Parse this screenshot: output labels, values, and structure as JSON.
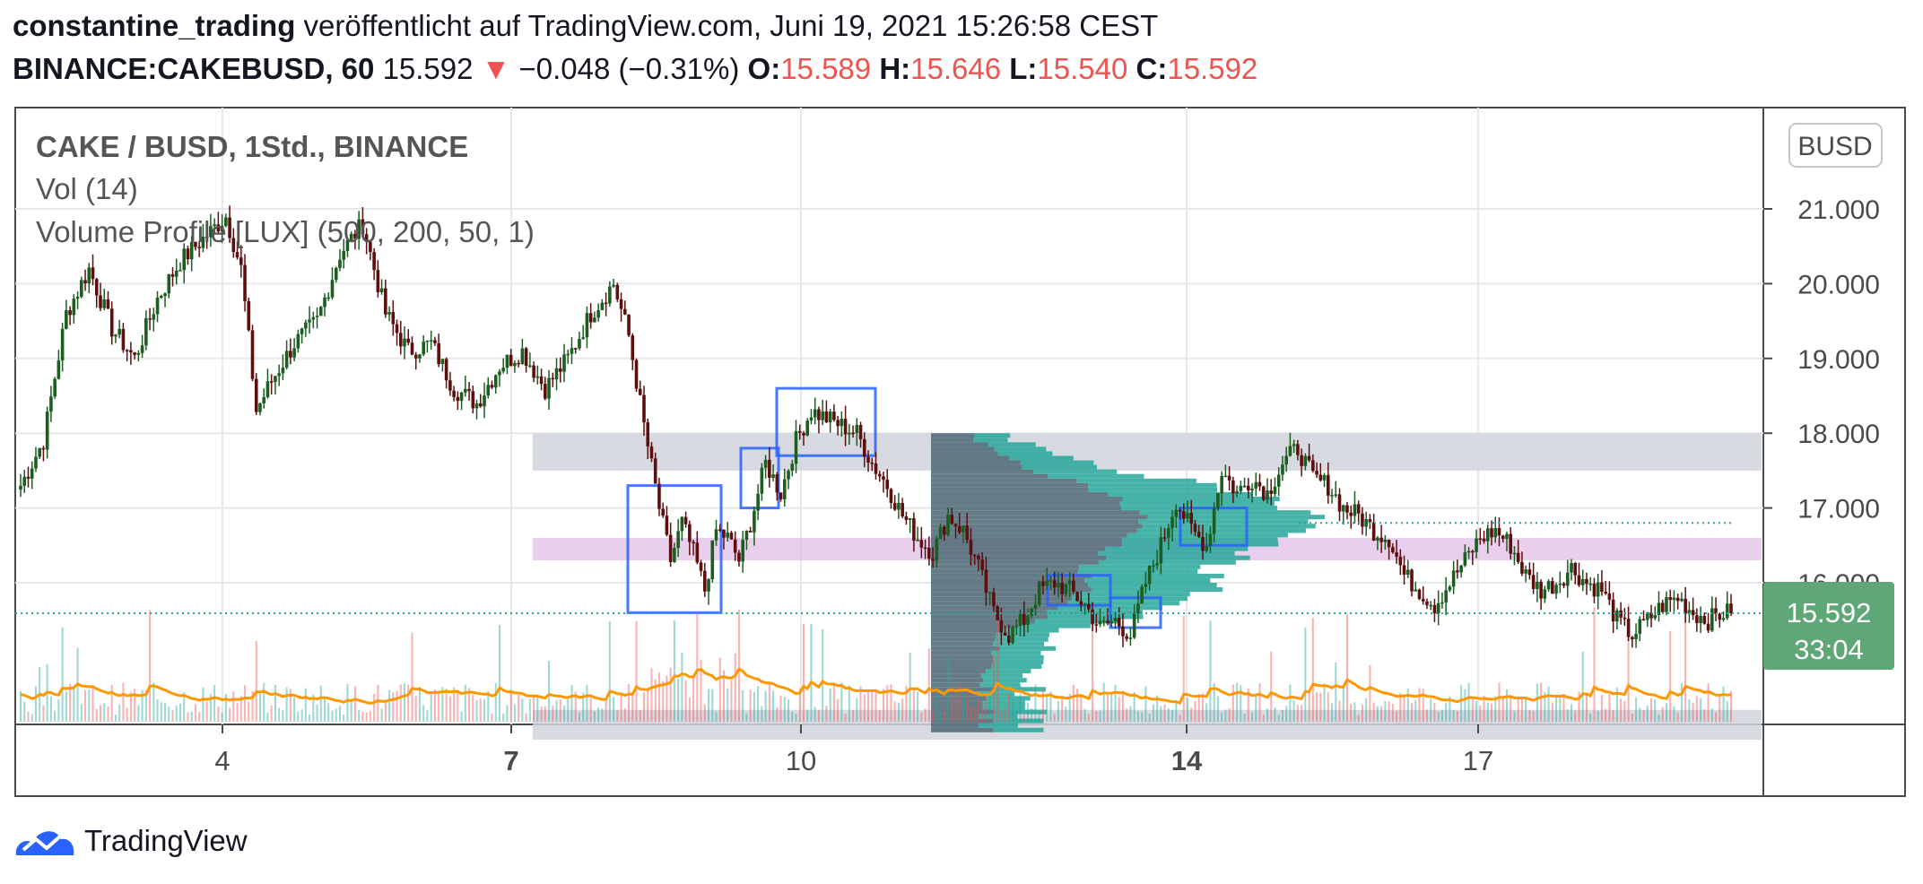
{
  "header": {
    "author": "constantine_trading",
    "published": "veröffentlicht auf TradingView.com, Juni 19, 2021 15:26:58 CEST",
    "symbol": "BINANCE:CAKEBUSD, 60",
    "last": "15.592",
    "change": "−0.048 (−0.31%)",
    "o_label": "O:",
    "o": "15.589",
    "h_label": "H:",
    "h": "15.646",
    "l_label": "L:",
    "l": "15.540",
    "c_label": "C:",
    "c": "15.592"
  },
  "legend": {
    "title": "CAKE / BUSD, 1Std., BINANCE",
    "vol": "Vol (14)",
    "vp": "Volume Profile [LUX] (500, 200, 50, 1)"
  },
  "price_badge": {
    "price": "15.592",
    "countdown": "33:04"
  },
  "currency_badge": "BUSD",
  "footer_brand": "TradingView",
  "colors": {
    "up": "#26a69a",
    "down": "#ef5350",
    "body_up": "#1b5e20",
    "body_down": "#5d0f0f",
    "zone_gray": "#d1d4dc",
    "zone_pink": "#e1bee7",
    "box": "#2962ff",
    "vol_ma": "#ff9800",
    "badge": "#5fa777"
  },
  "chart_data": {
    "type": "candlestick",
    "title": "CAKE / BUSD, 1Std., BINANCE",
    "x_ticks": [
      "4",
      "7",
      "10",
      "14",
      "17"
    ],
    "y_ticks": [
      "21.000",
      "20.000",
      "19.000",
      "18.000",
      "17.000",
      "16.000"
    ],
    "ylim": [
      14.3,
      21.6
    ],
    "close_path": [
      [
        0,
        17.3
      ],
      [
        6,
        17.9
      ],
      [
        12,
        19.6
      ],
      [
        18,
        20.2
      ],
      [
        24,
        19.4
      ],
      [
        30,
        19.0
      ],
      [
        36,
        19.8
      ],
      [
        42,
        20.3
      ],
      [
        48,
        20.6
      ],
      [
        54,
        20.9
      ],
      [
        58,
        20.2
      ],
      [
        62,
        18.3
      ],
      [
        66,
        18.7
      ],
      [
        72,
        19.2
      ],
      [
        78,
        19.5
      ],
      [
        84,
        20.4
      ],
      [
        90,
        20.8
      ],
      [
        96,
        19.6
      ],
      [
        102,
        19.1
      ],
      [
        108,
        19.2
      ],
      [
        114,
        18.6
      ],
      [
        120,
        18.4
      ],
      [
        126,
        18.9
      ],
      [
        132,
        19.1
      ],
      [
        138,
        18.6
      ],
      [
        144,
        19.0
      ],
      [
        150,
        19.6
      ],
      [
        156,
        20.0
      ],
      [
        160,
        19.3
      ],
      [
        164,
        18.1
      ],
      [
        168,
        17.0
      ],
      [
        171,
        16.3
      ],
      [
        174,
        16.8
      ],
      [
        177,
        16.4
      ],
      [
        180,
        15.9
      ],
      [
        183,
        16.7
      ],
      [
        186,
        16.6
      ],
      [
        189,
        16.3
      ],
      [
        192,
        16.8
      ],
      [
        196,
        17.6
      ],
      [
        200,
        17.2
      ],
      [
        204,
        17.9
      ],
      [
        208,
        18.3
      ],
      [
        212,
        18.2
      ],
      [
        216,
        18.1
      ],
      [
        220,
        18.0
      ],
      [
        224,
        17.6
      ],
      [
        228,
        17.3
      ],
      [
        232,
        16.9
      ],
      [
        236,
        16.6
      ],
      [
        240,
        16.4
      ],
      [
        244,
        16.9
      ],
      [
        248,
        16.7
      ],
      [
        252,
        16.2
      ],
      [
        256,
        15.6
      ],
      [
        260,
        15.3
      ],
      [
        264,
        15.5
      ],
      [
        268,
        15.9
      ],
      [
        272,
        16.0
      ],
      [
        276,
        15.9
      ],
      [
        280,
        15.7
      ],
      [
        284,
        15.4
      ],
      [
        288,
        15.5
      ],
      [
        292,
        15.3
      ],
      [
        296,
        16.0
      ],
      [
        300,
        16.5
      ],
      [
        304,
        17.1
      ],
      [
        308,
        16.7
      ],
      [
        312,
        16.5
      ],
      [
        316,
        17.5
      ],
      [
        320,
        17.2
      ],
      [
        324,
        17.4
      ],
      [
        328,
        17.2
      ],
      [
        332,
        17.6
      ],
      [
        336,
        17.8
      ],
      [
        340,
        17.4
      ],
      [
        344,
        17.3
      ],
      [
        348,
        17.0
      ],
      [
        352,
        16.9
      ],
      [
        356,
        16.7
      ],
      [
        360,
        16.6
      ],
      [
        364,
        16.1
      ],
      [
        368,
        15.9
      ],
      [
        372,
        15.7
      ],
      [
        376,
        16.0
      ],
      [
        380,
        16.3
      ],
      [
        384,
        16.6
      ],
      [
        388,
        16.7
      ],
      [
        392,
        16.5
      ],
      [
        396,
        16.1
      ],
      [
        400,
        15.9
      ],
      [
        404,
        16.0
      ],
      [
        408,
        16.2
      ],
      [
        412,
        16.0
      ],
      [
        416,
        15.9
      ],
      [
        420,
        15.5
      ],
      [
        424,
        15.3
      ],
      [
        428,
        15.5
      ],
      [
        432,
        15.7
      ],
      [
        436,
        15.8
      ],
      [
        440,
        15.6
      ],
      [
        444,
        15.5
      ],
      [
        448,
        15.6
      ],
      [
        450,
        15.592
      ]
    ],
    "zones": [
      {
        "type": "supply",
        "from": 17.5,
        "to": 18.0
      },
      {
        "type": "mid",
        "from": 16.3,
        "to": 16.6
      },
      {
        "type": "demand",
        "from": 13.9,
        "to": 14.3
      }
    ],
    "volume_profile": {
      "price_from": 14.0,
      "price_to": 18.0,
      "poc": 16.8
    },
    "volume_ma": true,
    "last_price": 15.592
  }
}
